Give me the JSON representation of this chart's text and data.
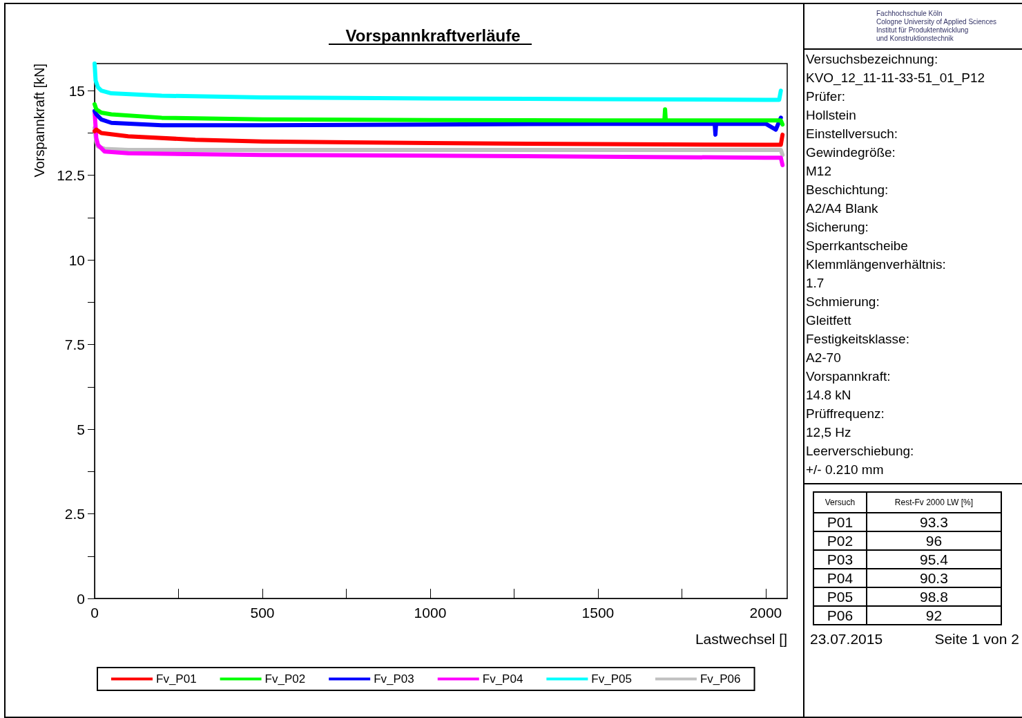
{
  "chart_data": {
    "type": "line",
    "title": "Vorspannkraftverläufe",
    "xlabel": "Lastwechsel []",
    "ylabel": "Vorspannkraft [kN]",
    "xlim": [
      0,
      2064
    ],
    "ylim": [
      0,
      15.8
    ],
    "xticks": [
      0,
      {
        "value": 250,
        "label": null
      },
      500,
      {
        "value": 750,
        "label": null
      },
      1000,
      {
        "value": 1250,
        "label": null
      },
      1500,
      {
        "value": 1750,
        "label": null
      },
      2000
    ],
    "yticks": [
      0,
      {
        "value": 1.25,
        "label": null
      },
      2.5,
      {
        "value": 3.75,
        "label": null
      },
      5,
      {
        "value": 6.25,
        "label": null
      },
      7.5,
      {
        "value": 8.75,
        "label": null
      },
      10,
      {
        "value": 11.25,
        "label": null
      },
      12.5,
      {
        "value": 13.75,
        "label": null
      },
      15
    ],
    "grid": false,
    "legend": "bottom",
    "marker": "none",
    "line_style": "solid",
    "series": [
      {
        "name": "Fv_P01",
        "color": "#ff0000",
        "x": [
          0,
          5,
          20,
          100,
          300,
          500,
          1000,
          1500,
          2000,
          2045,
          2050
        ],
        "values": [
          13.8,
          13.85,
          13.75,
          13.65,
          13.55,
          13.5,
          13.45,
          13.42,
          13.4,
          13.4,
          13.7
        ]
      },
      {
        "name": "Fv_P02",
        "color": "#00ff00",
        "x": [
          0,
          5,
          20,
          50,
          200,
          500,
          1000,
          1500,
          1698,
          1700,
          1702,
          2000,
          2045,
          2050
        ],
        "values": [
          14.6,
          14.45,
          14.35,
          14.3,
          14.2,
          14.15,
          14.13,
          14.12,
          14.12,
          14.45,
          14.12,
          14.12,
          14.12,
          14.0
        ]
      },
      {
        "name": "Fv_P03",
        "color": "#0000ff",
        "x": [
          0,
          5,
          20,
          50,
          200,
          500,
          1000,
          1500,
          1848,
          1850,
          1852,
          2000,
          2030,
          2045
        ],
        "values": [
          14.4,
          14.3,
          14.15,
          14.05,
          13.98,
          13.98,
          14.0,
          14.02,
          14.02,
          13.7,
          14.02,
          14.02,
          13.85,
          14.2
        ]
      },
      {
        "name": "Fv_P04",
        "color": "#ff00ff",
        "x": [
          0,
          5,
          10,
          30,
          100,
          500,
          1000,
          1500,
          2000,
          2045,
          2050
        ],
        "values": [
          14.4,
          13.6,
          13.4,
          13.2,
          13.15,
          13.1,
          13.08,
          13.05,
          13.02,
          13.02,
          12.8
        ]
      },
      {
        "name": "Fv_P05",
        "color": "#00ffff",
        "x": [
          0,
          3,
          10,
          20,
          50,
          200,
          500,
          1000,
          1500,
          2000,
          2040,
          2045
        ],
        "values": [
          15.8,
          15.3,
          15.1,
          15.0,
          14.92,
          14.85,
          14.8,
          14.77,
          14.75,
          14.73,
          14.73,
          15.0
        ]
      },
      {
        "name": "Fv_P06",
        "color": "#c0c0c0",
        "x": [
          0,
          5,
          10,
          30,
          100,
          500,
          1000,
          1500,
          2000,
          2045,
          2050
        ],
        "values": [
          13.9,
          13.5,
          13.35,
          13.28,
          13.25,
          13.25,
          13.25,
          13.25,
          13.25,
          13.25,
          13.1
        ]
      }
    ],
    "annotations": [
      "Fachhochschule Köln",
      "Cologne University of Applied Sciences",
      "Institut für Produktentwicklung",
      "und Konstruktionstechnik",
      "Versuchsbezeichnung:",
      "KVO_12_11-11-33-51_01_P12",
      "Prüfer:",
      "Hollstein",
      "Einstellversuch:",
      "Gewindegröße:",
      "M12",
      "Beschichtung:",
      "A2/A4 Blank",
      "Sicherung:",
      "Sperrkantscheibe",
      "Klemmlängenverhältnis:",
      "1.7",
      "Schmierung:",
      "Gleitfett",
      "Festigkeitsklasse:",
      "A2-70",
      "Vorspannkraft:",
      "14.8 kN",
      "Prüffrequenz:",
      "12,5 Hz",
      "Leerverschiebung:",
      "+/- 0.210 mm",
      "Versuch",
      "Rest-Fv 2000 LW [%]",
      "P01",
      "93.3",
      "P02",
      "96",
      "P03",
      "95.4",
      "P04",
      "90.3",
      "P05",
      "98.8",
      "P06",
      "92",
      "23.07.2015",
      "Seite 1 von 2"
    ]
  }
}
